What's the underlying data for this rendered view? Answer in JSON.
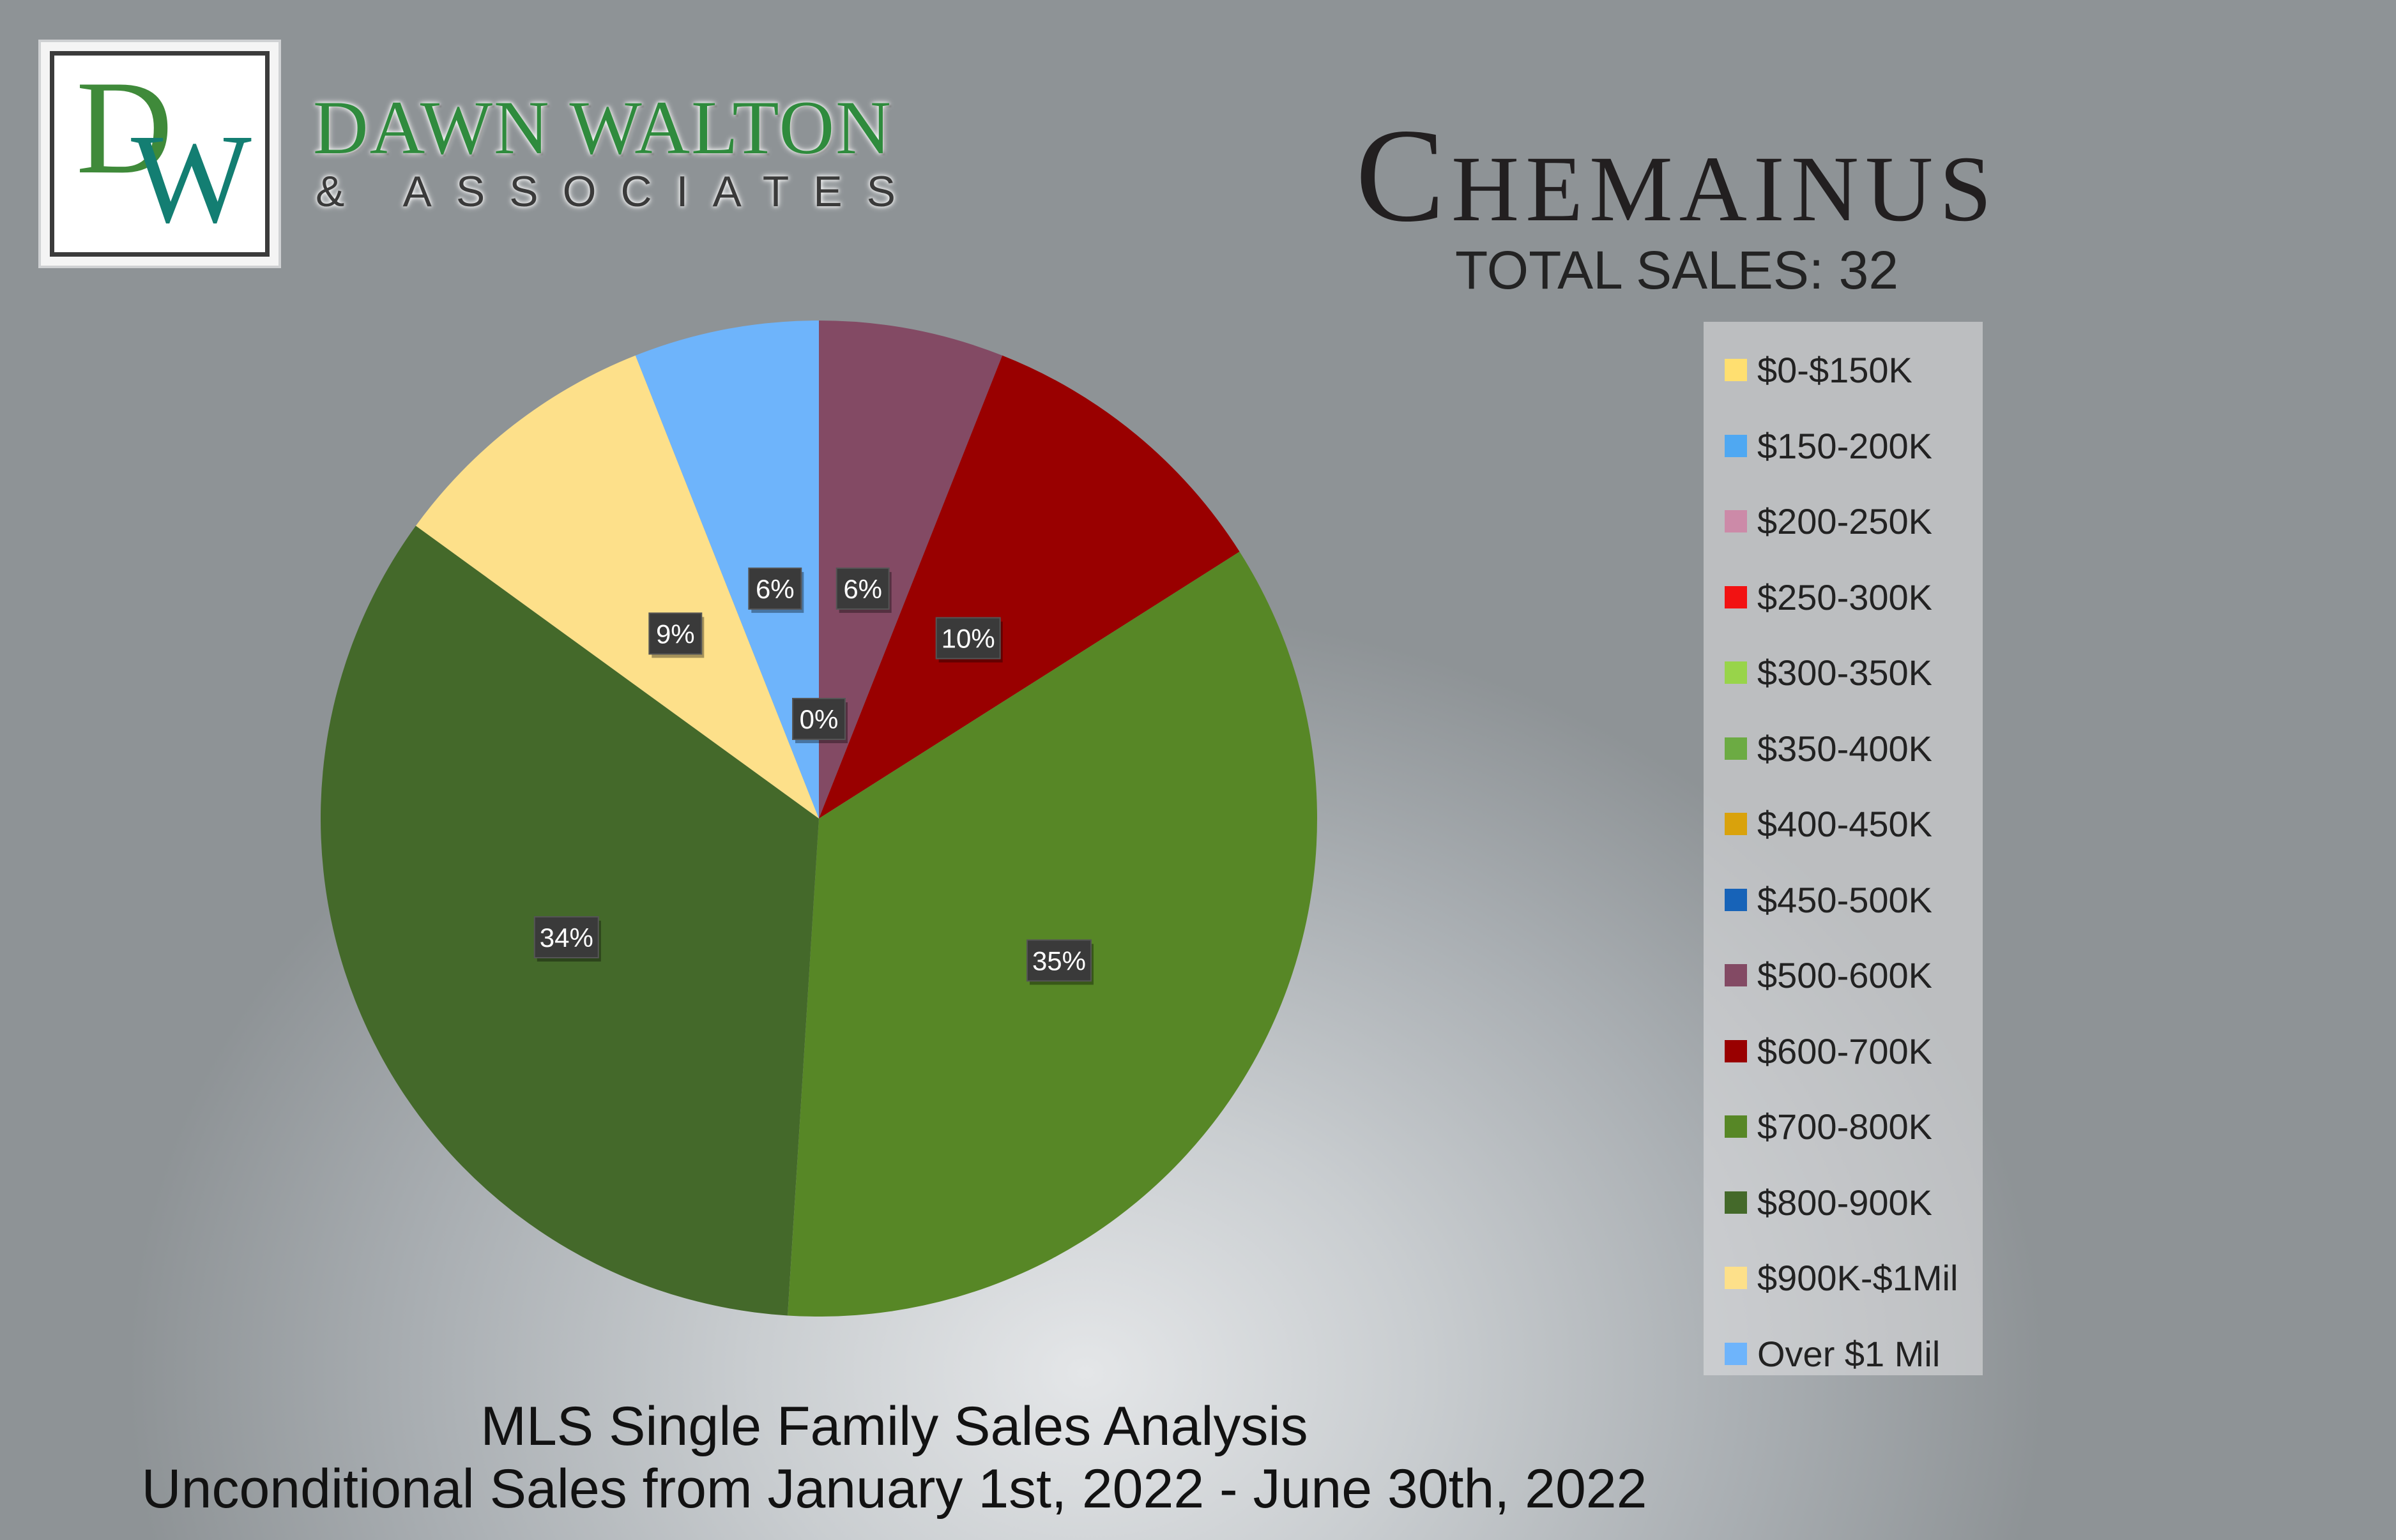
{
  "brand": {
    "logo_d": "D",
    "logo_w": "W",
    "name": "DAWN WALTON",
    "sub": "& ASSOCIATES"
  },
  "header": {
    "title": "Chemainus",
    "total_sales": "TOTAL SALES: 32"
  },
  "footer": {
    "line1": "MLS Single Family Sales Analysis",
    "line2": "Unconditional Sales from January 1st, 2022 - June 30th, 2022"
  },
  "chart_data": {
    "type": "pie",
    "title": "Chemainus",
    "subtitle": "TOTAL SALES: 32",
    "legend_position": "right",
    "categories": [
      "$0-$150K",
      "$150-200K",
      "$200-250K",
      "$250-300K",
      "$300-350K",
      "$350-400K",
      "$400-450K",
      "$450-500K",
      "$500-600K",
      "$600-700K",
      "$700-800K",
      "$800-900K",
      "$900K-$1Mil",
      "Over $1 Mil"
    ],
    "values": [
      0,
      0,
      0,
      0,
      0,
      0,
      0,
      0,
      6,
      10,
      35,
      34,
      9,
      6
    ],
    "value_labels": [
      "0%",
      "",
      "",
      "",
      "",
      "",
      "",
      "",
      "6%",
      "10%",
      "35%",
      "34%",
      "9%",
      "6%"
    ],
    "colors": [
      "#ffdf70",
      "#4fa8f2",
      "#cc8aa8",
      "#f21212",
      "#98d44a",
      "#6cab43",
      "#d9a20c",
      "#1763b8",
      "#834a64",
      "#990000",
      "#578726",
      "#44692a",
      "#fde08a",
      "#6eb4fb"
    ]
  }
}
